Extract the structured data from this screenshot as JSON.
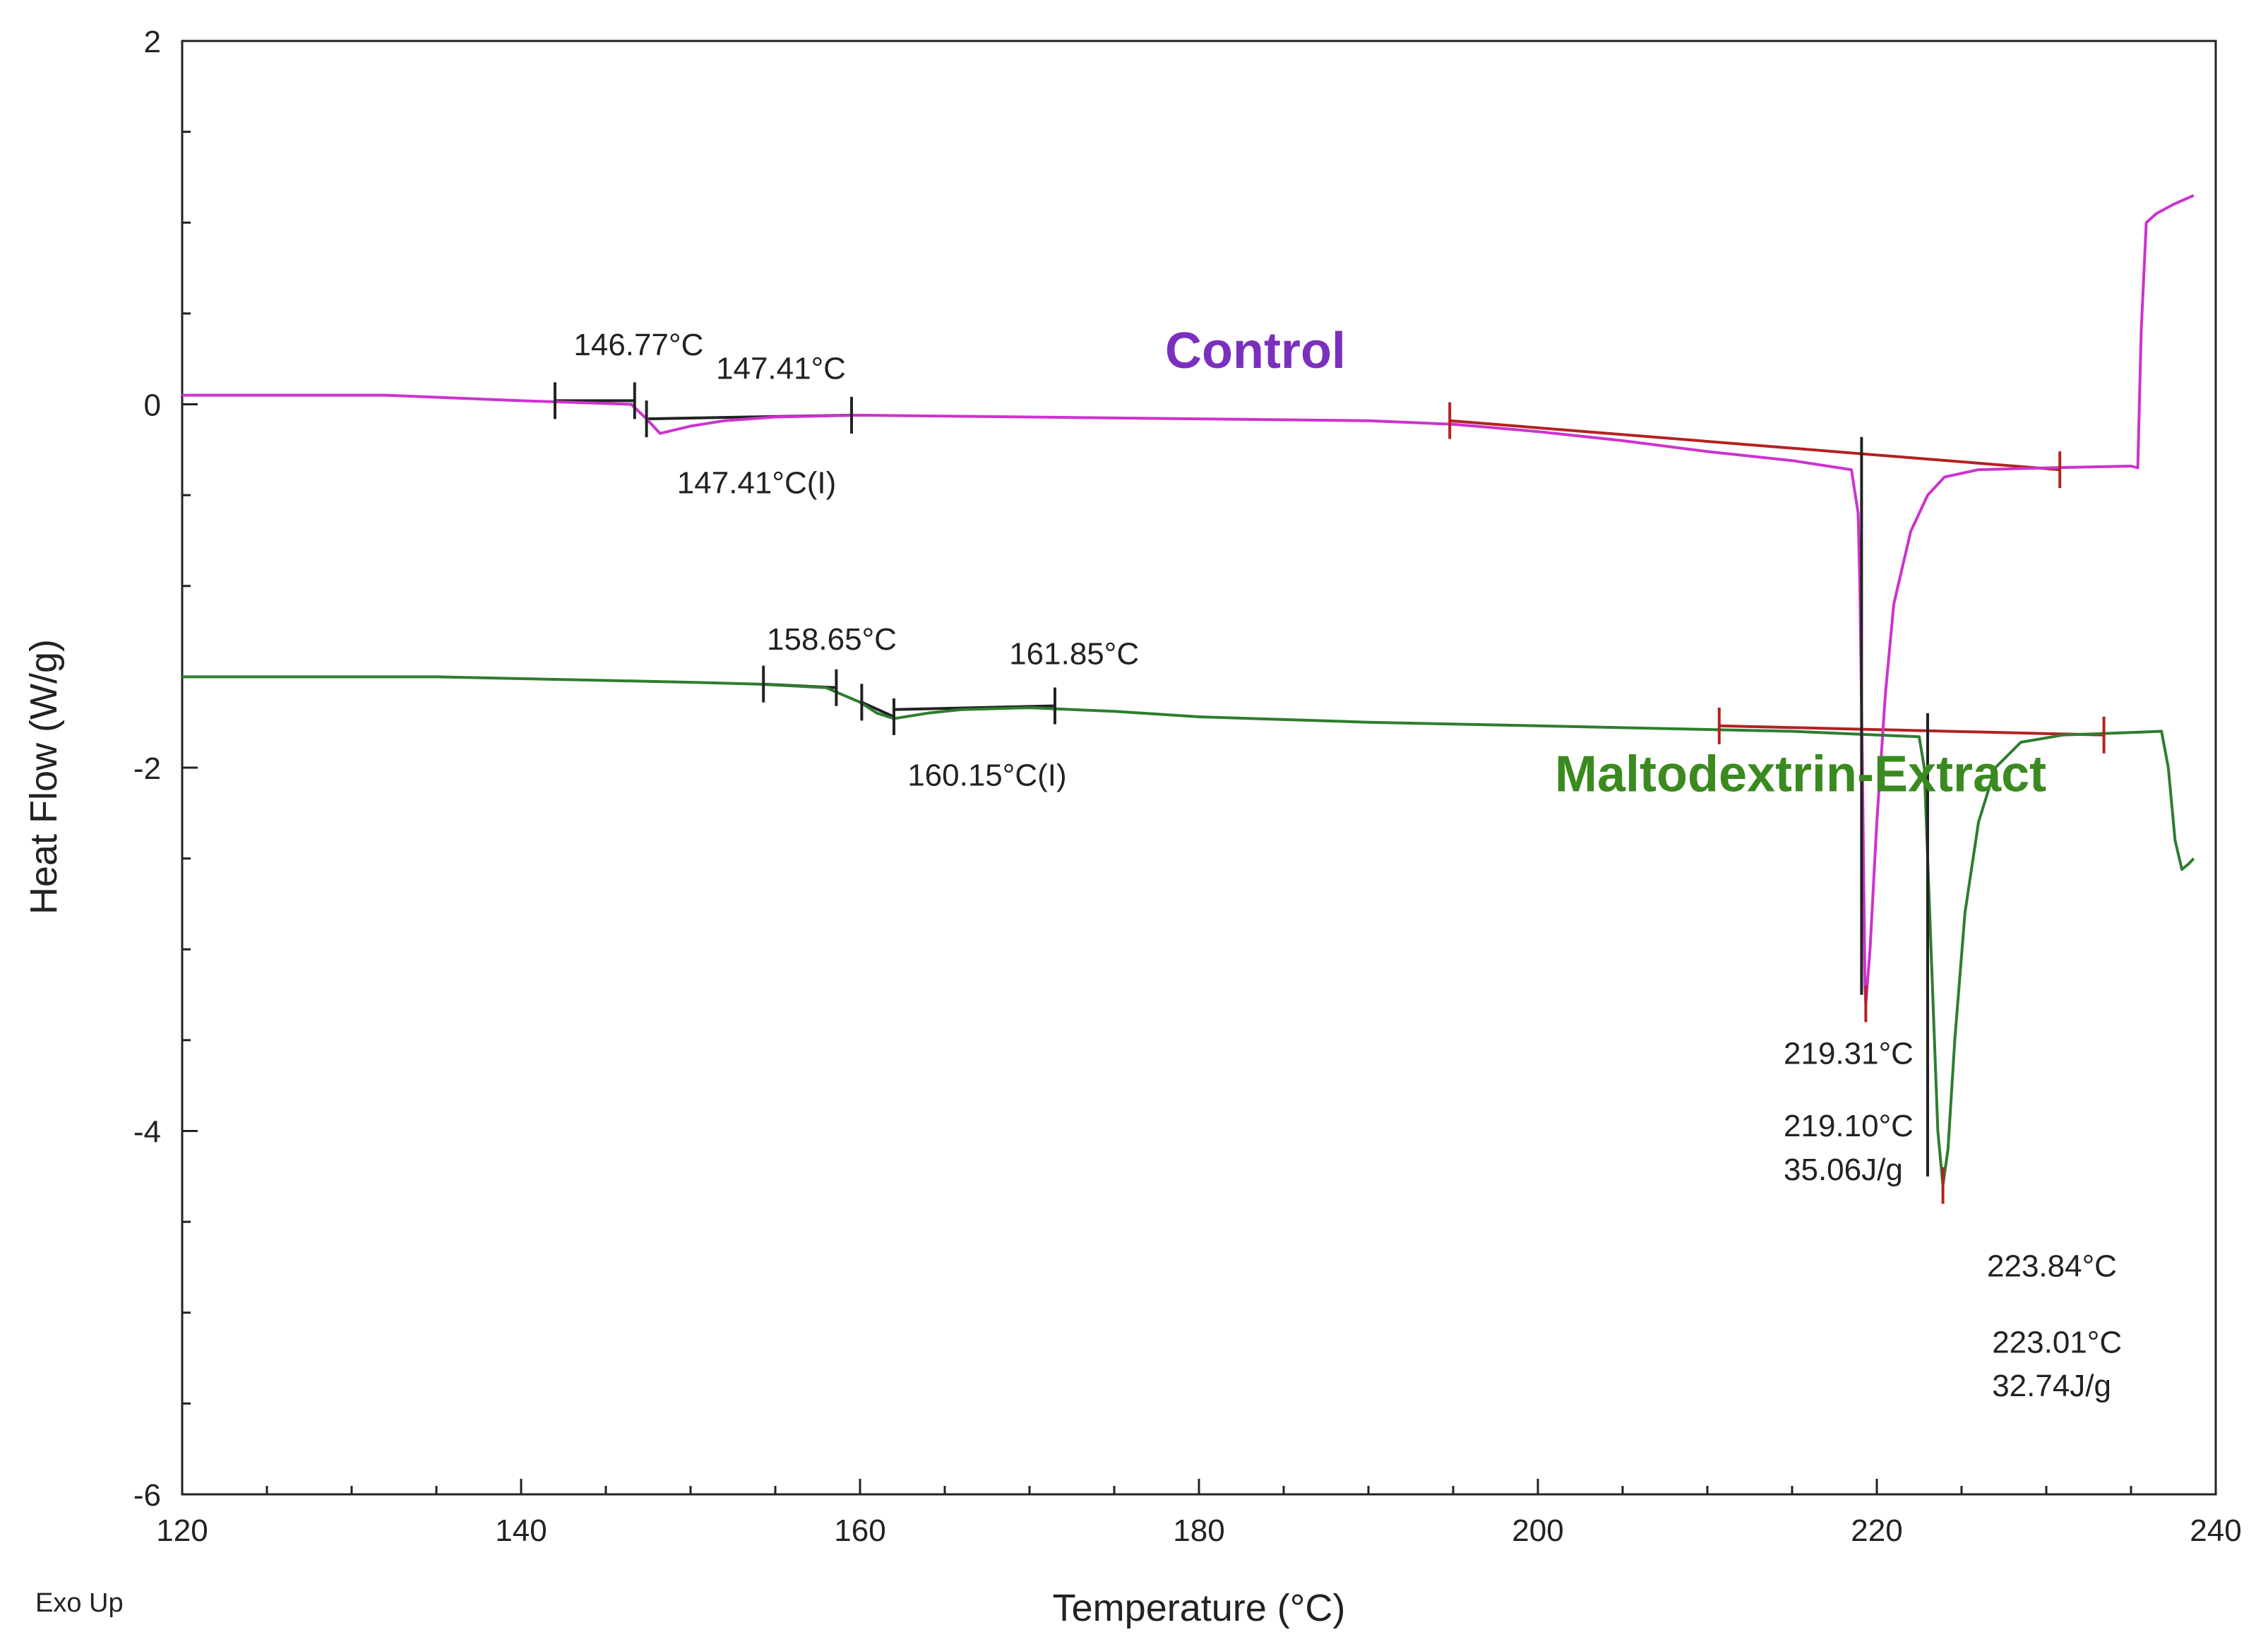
{
  "chart_data": {
    "type": "line",
    "title": "",
    "xlabel": "Temperature (°C)",
    "ylabel": "Heat Flow (W/g)",
    "corner_label": "Exo Up",
    "xlim": [
      120,
      240
    ],
    "ylim": [
      -6,
      2
    ],
    "x_ticks": [
      120,
      140,
      160,
      180,
      200,
      220,
      240
    ],
    "y_ticks": [
      2,
      0,
      -2,
      -4,
      -6
    ],
    "series": [
      {
        "name": "Control",
        "color": "#cc33cc",
        "label_color": "#7b2fbe",
        "label_at": [
          178,
          0.2
        ],
        "points": [
          [
            120,
            0.05
          ],
          [
            132,
            0.05
          ],
          [
            140,
            0.02
          ],
          [
            146.5,
            0.0
          ],
          [
            147.4,
            -0.08
          ],
          [
            148.2,
            -0.16
          ],
          [
            150,
            -0.12
          ],
          [
            152,
            -0.09
          ],
          [
            155,
            -0.07
          ],
          [
            160,
            -0.06
          ],
          [
            170,
            -0.07
          ],
          [
            180,
            -0.08
          ],
          [
            190,
            -0.09
          ],
          [
            195,
            -0.11
          ],
          [
            200,
            -0.15
          ],
          [
            205,
            -0.2
          ],
          [
            210,
            -0.26
          ],
          [
            215,
            -0.31
          ],
          [
            218.5,
            -0.36
          ],
          [
            218.9,
            -0.6
          ],
          [
            219.0,
            -1.0
          ],
          [
            219.15,
            -2.0
          ],
          [
            219.3,
            -3.2
          ],
          [
            219.35,
            -3.3
          ],
          [
            219.6,
            -3.0
          ],
          [
            220.0,
            -2.3
          ],
          [
            220.5,
            -1.6
          ],
          [
            221,
            -1.1
          ],
          [
            222,
            -0.7
          ],
          [
            223,
            -0.5
          ],
          [
            224,
            -0.4
          ],
          [
            226,
            -0.36
          ],
          [
            230,
            -0.35
          ],
          [
            235,
            -0.34
          ],
          [
            235.4,
            -0.35
          ],
          [
            235.6,
            0.4
          ],
          [
            235.9,
            1.0
          ],
          [
            236.5,
            1.05
          ],
          [
            237.5,
            1.1
          ],
          [
            238.7,
            1.15
          ]
        ]
      },
      {
        "name": "Maltodextrin-Extract",
        "color": "#2e7d2e",
        "label_color": "#3a8a1f",
        "label_at": [
          201,
          -2.13
        ],
        "points": [
          [
            120,
            -1.5
          ],
          [
            135,
            -1.5
          ],
          [
            145,
            -1.52
          ],
          [
            150,
            -1.53
          ],
          [
            154,
            -1.54
          ],
          [
            158,
            -1.56
          ],
          [
            160,
            -1.64
          ],
          [
            161,
            -1.7
          ],
          [
            162,
            -1.73
          ],
          [
            164,
            -1.7
          ],
          [
            166,
            -1.68
          ],
          [
            170,
            -1.67
          ],
          [
            175,
            -1.69
          ],
          [
            180,
            -1.72
          ],
          [
            190,
            -1.75
          ],
          [
            200,
            -1.77
          ],
          [
            210,
            -1.79
          ],
          [
            215,
            -1.8
          ],
          [
            220,
            -1.82
          ],
          [
            222.5,
            -1.83
          ],
          [
            222.8,
            -2.0
          ],
          [
            223.2,
            -3.0
          ],
          [
            223.6,
            -4.0
          ],
          [
            223.9,
            -4.3
          ],
          [
            224.2,
            -4.1
          ],
          [
            224.6,
            -3.5
          ],
          [
            225.2,
            -2.8
          ],
          [
            226,
            -2.3
          ],
          [
            227,
            -2.0
          ],
          [
            228.5,
            -1.86
          ],
          [
            231,
            -1.82
          ],
          [
            234,
            -1.81
          ],
          [
            236.8,
            -1.8
          ],
          [
            237.2,
            -2.0
          ],
          [
            237.6,
            -2.4
          ],
          [
            238,
            -2.56
          ],
          [
            238.4,
            -2.53
          ],
          [
            238.7,
            -2.5
          ]
        ]
      }
    ],
    "baselines": [
      {
        "color": "#222222",
        "points": [
          [
            142,
            0.02
          ],
          [
            146.7,
            0.02
          ]
        ]
      },
      {
        "color": "#222222",
        "points": [
          [
            147.4,
            -0.08
          ],
          [
            159.5,
            -0.06
          ]
        ]
      },
      {
        "color": "#b22222",
        "points": [
          [
            194.8,
            -0.09
          ],
          [
            230.8,
            -0.36
          ]
        ]
      },
      {
        "color": "#222222",
        "points": [
          [
            154.3,
            -1.54
          ],
          [
            158.6,
            -1.56
          ]
        ]
      },
      {
        "color": "#222222",
        "points": [
          [
            160.1,
            -1.64
          ],
          [
            162,
            -1.72
          ]
        ]
      },
      {
        "color": "#222222",
        "points": [
          [
            162,
            -1.68
          ],
          [
            171.5,
            -1.66
          ]
        ]
      },
      {
        "color": "#b22222",
        "points": [
          [
            210.7,
            -1.77
          ],
          [
            233.4,
            -1.82
          ]
        ]
      }
    ],
    "markers": [
      {
        "x": 142,
        "y": 0.02,
        "color": "#222222"
      },
      {
        "x": 146.7,
        "y": 0.02,
        "color": "#222222"
      },
      {
        "x": 147.4,
        "y": -0.08,
        "color": "#222222"
      },
      {
        "x": 159.5,
        "y": -0.06,
        "color": "#222222"
      },
      {
        "x": 194.8,
        "y": -0.09,
        "color": "#b22222"
      },
      {
        "x": 230.8,
        "y": -0.36,
        "color": "#b22222"
      },
      {
        "x": 154.3,
        "y": -1.54,
        "color": "#222222"
      },
      {
        "x": 158.6,
        "y": -1.56,
        "color": "#222222"
      },
      {
        "x": 160.1,
        "y": -1.64,
        "color": "#222222"
      },
      {
        "x": 162,
        "y": -1.72,
        "color": "#222222"
      },
      {
        "x": 171.5,
        "y": -1.66,
        "color": "#222222"
      },
      {
        "x": 210.7,
        "y": -1.77,
        "color": "#b22222"
      },
      {
        "x": 233.4,
        "y": -1.82,
        "color": "#b22222"
      },
      {
        "x": 219.35,
        "y": -3.3,
        "color": "#b22222"
      },
      {
        "x": 223.9,
        "y": -4.3,
        "color": "#b22222"
      }
    ],
    "peak_lines": [
      {
        "color": "#222222",
        "x": 219.1,
        "y1": -0.18,
        "y2": -3.25
      },
      {
        "color": "#222222",
        "x": 223.0,
        "y1": -1.7,
        "y2": -4.25
      }
    ],
    "annotations": [
      {
        "text": "146.77°C",
        "x": 143.1,
        "y": 0.27
      },
      {
        "text": "147.41°C",
        "x": 151.5,
        "y": 0.14
      },
      {
        "text": "147.41°C(I)",
        "x": 149.2,
        "y": -0.49
      },
      {
        "text": "158.65°C",
        "x": 154.5,
        "y": -1.35
      },
      {
        "text": "161.85°C",
        "x": 168.8,
        "y": -1.43
      },
      {
        "text": "160.15°C(I)",
        "x": 162.8,
        "y": -2.1
      },
      {
        "text": "219.31°C",
        "x": 214.5,
        "y": -3.63
      },
      {
        "text": "219.10°C",
        "x": 214.5,
        "y": -4.03
      },
      {
        "text": "35.06J/g",
        "x": 214.5,
        "y": -4.27
      },
      {
        "text": "223.84°C",
        "x": 226.5,
        "y": -4.8
      },
      {
        "text": "223.01°C",
        "x": 226.8,
        "y": -5.22
      },
      {
        "text": "32.74J/g",
        "x": 226.8,
        "y": -5.46
      }
    ]
  }
}
